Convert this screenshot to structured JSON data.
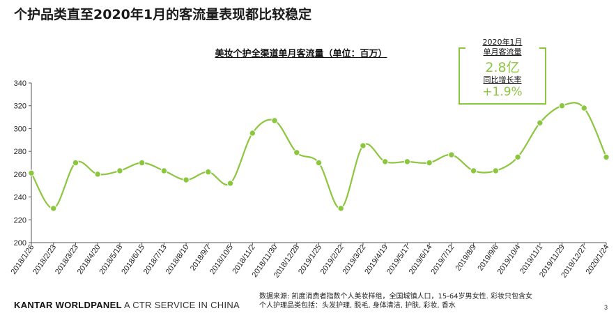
{
  "page": {
    "title": "个护品类直至2020年1月的客流量表现都比较稳定",
    "brand_bold": "KANTAR WORLDPANEL",
    "brand_sub": " A CTR SERVICE IN CHINA",
    "source_line1": "数据来源: 凯度消费者指数个人美妆样组，全国城镇人口，15-64岁男女性.   彩妆只包含女",
    "source_line2": "个人护理品类包括：头发护理, 脱毛, 身体清洁, 护肤, 彩妆, 香水",
    "page_number": "3"
  },
  "callout": {
    "line1": "2020年1月",
    "line2": "单月客流量",
    "value": "2.8亿",
    "line3": "同比增长率",
    "growth": "+1.9%"
  },
  "colors": {
    "line": "#8cc63f",
    "accent": "#8cc63f"
  },
  "chart_data": {
    "type": "line",
    "title": "美妆个护全渠道单月客流量（单位：百万）",
    "x": [
      "2018/1/26",
      "2018/2/23",
      "2018/3/23",
      "2018/4/20",
      "2018/5/18",
      "2018/6/15",
      "2018/7/13",
      "2018/8/10",
      "2018/9/7",
      "2018/10/5",
      "2018/11/2",
      "2018/11/30",
      "2018/12/28",
      "2019/1/25",
      "2019/2/22",
      "2019/3/22",
      "2019/4/19",
      "2019/5/17",
      "2019/6/14",
      "2019/7/12",
      "2019/8/9",
      "2019/9/6",
      "2019/10/4",
      "2019/11/1",
      "2019/11/29",
      "2019/12/27",
      "2020/1/24"
    ],
    "series": [
      {
        "values": [
          261,
          230,
          270,
          260,
          263,
          270,
          263,
          255,
          262,
          252,
          296,
          307,
          279,
          270,
          230,
          285,
          271,
          271,
          270,
          277,
          263,
          263,
          275,
          305,
          320,
          318,
          275
        ]
      }
    ],
    "yticks": [
      200,
      220,
      240,
      260,
      280,
      300,
      320,
      340
    ],
    "ylim": [
      200,
      340
    ]
  }
}
